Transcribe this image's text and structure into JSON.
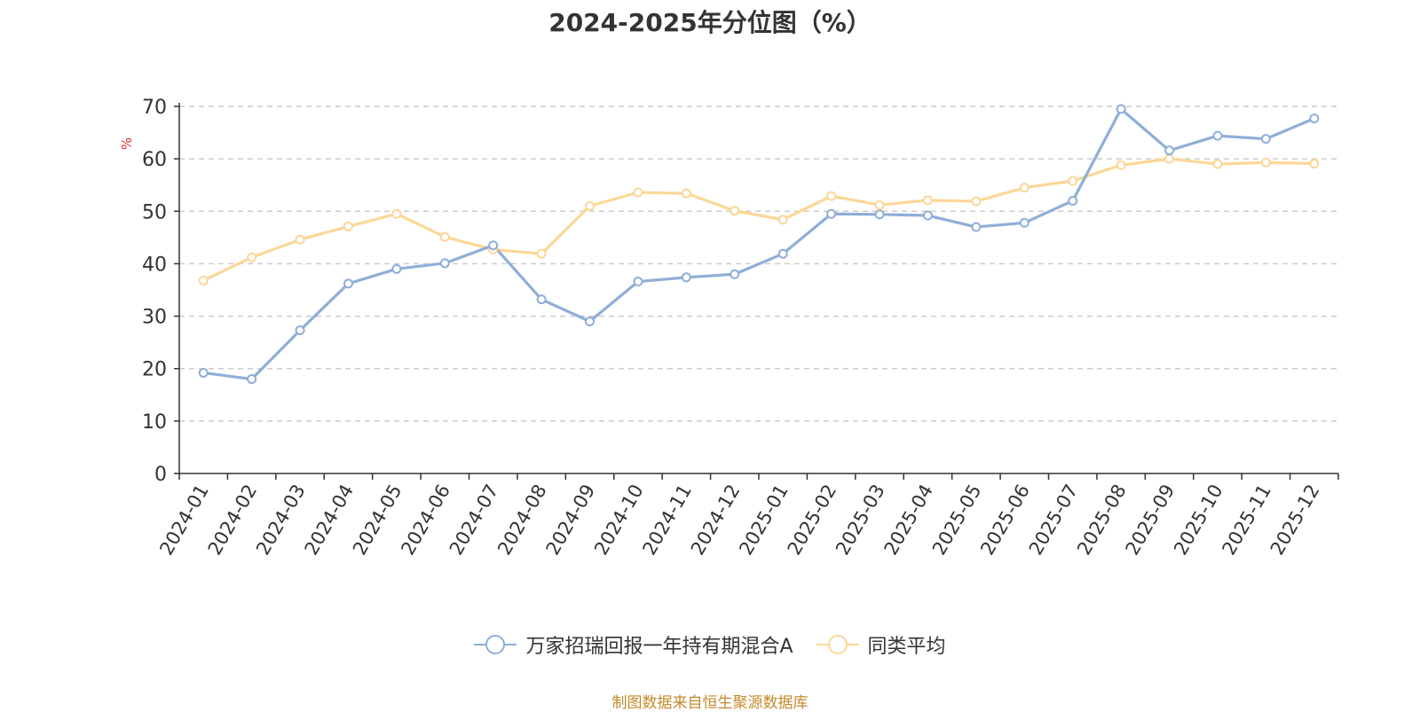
{
  "chart_data": {
    "type": "line",
    "title": "2024-2025年分位图（%）",
    "ylabel": "%",
    "xlabel": "",
    "ylim": [
      0,
      70
    ],
    "yticks": [
      0,
      10,
      20,
      30,
      40,
      50,
      60,
      70
    ],
    "grid": "horizontal dashed",
    "legend_position": "bottom",
    "categories": [
      "2024-01",
      "2024-02",
      "2024-03",
      "2024-04",
      "2024-05",
      "2024-06",
      "2024-07",
      "2024-08",
      "2024-09",
      "2024-10",
      "2024-11",
      "2024-12",
      "2025-01",
      "2025-02",
      "2025-03",
      "2025-04",
      "2025-05",
      "2025-06",
      "2025-07",
      "2025-08",
      "2025-09",
      "2025-10",
      "2025-11",
      "2025-12"
    ],
    "series": [
      {
        "name": "万家招瑞回报一年持有期混合A",
        "color": "#8faed8",
        "values": [
          19.2,
          18.0,
          27.3,
          36.2,
          39.0,
          40.1,
          43.5,
          33.2,
          29.0,
          36.6,
          37.4,
          38.0,
          41.9,
          49.5,
          49.4,
          49.2,
          47.0,
          47.8,
          52.0,
          69.5,
          61.6,
          64.4,
          63.8,
          67.7
        ]
      },
      {
        "name": "同类平均",
        "color": "#fbd797",
        "values": [
          36.8,
          41.2,
          44.6,
          47.1,
          49.5,
          45.1,
          42.7,
          41.9,
          51.0,
          53.6,
          53.4,
          50.1,
          48.4,
          52.9,
          51.2,
          52.1,
          51.9,
          54.5,
          55.8,
          58.8,
          60.0,
          59.0,
          59.3,
          59.1
        ]
      }
    ]
  },
  "source_text": "制图数据来自恒生聚源数据库"
}
